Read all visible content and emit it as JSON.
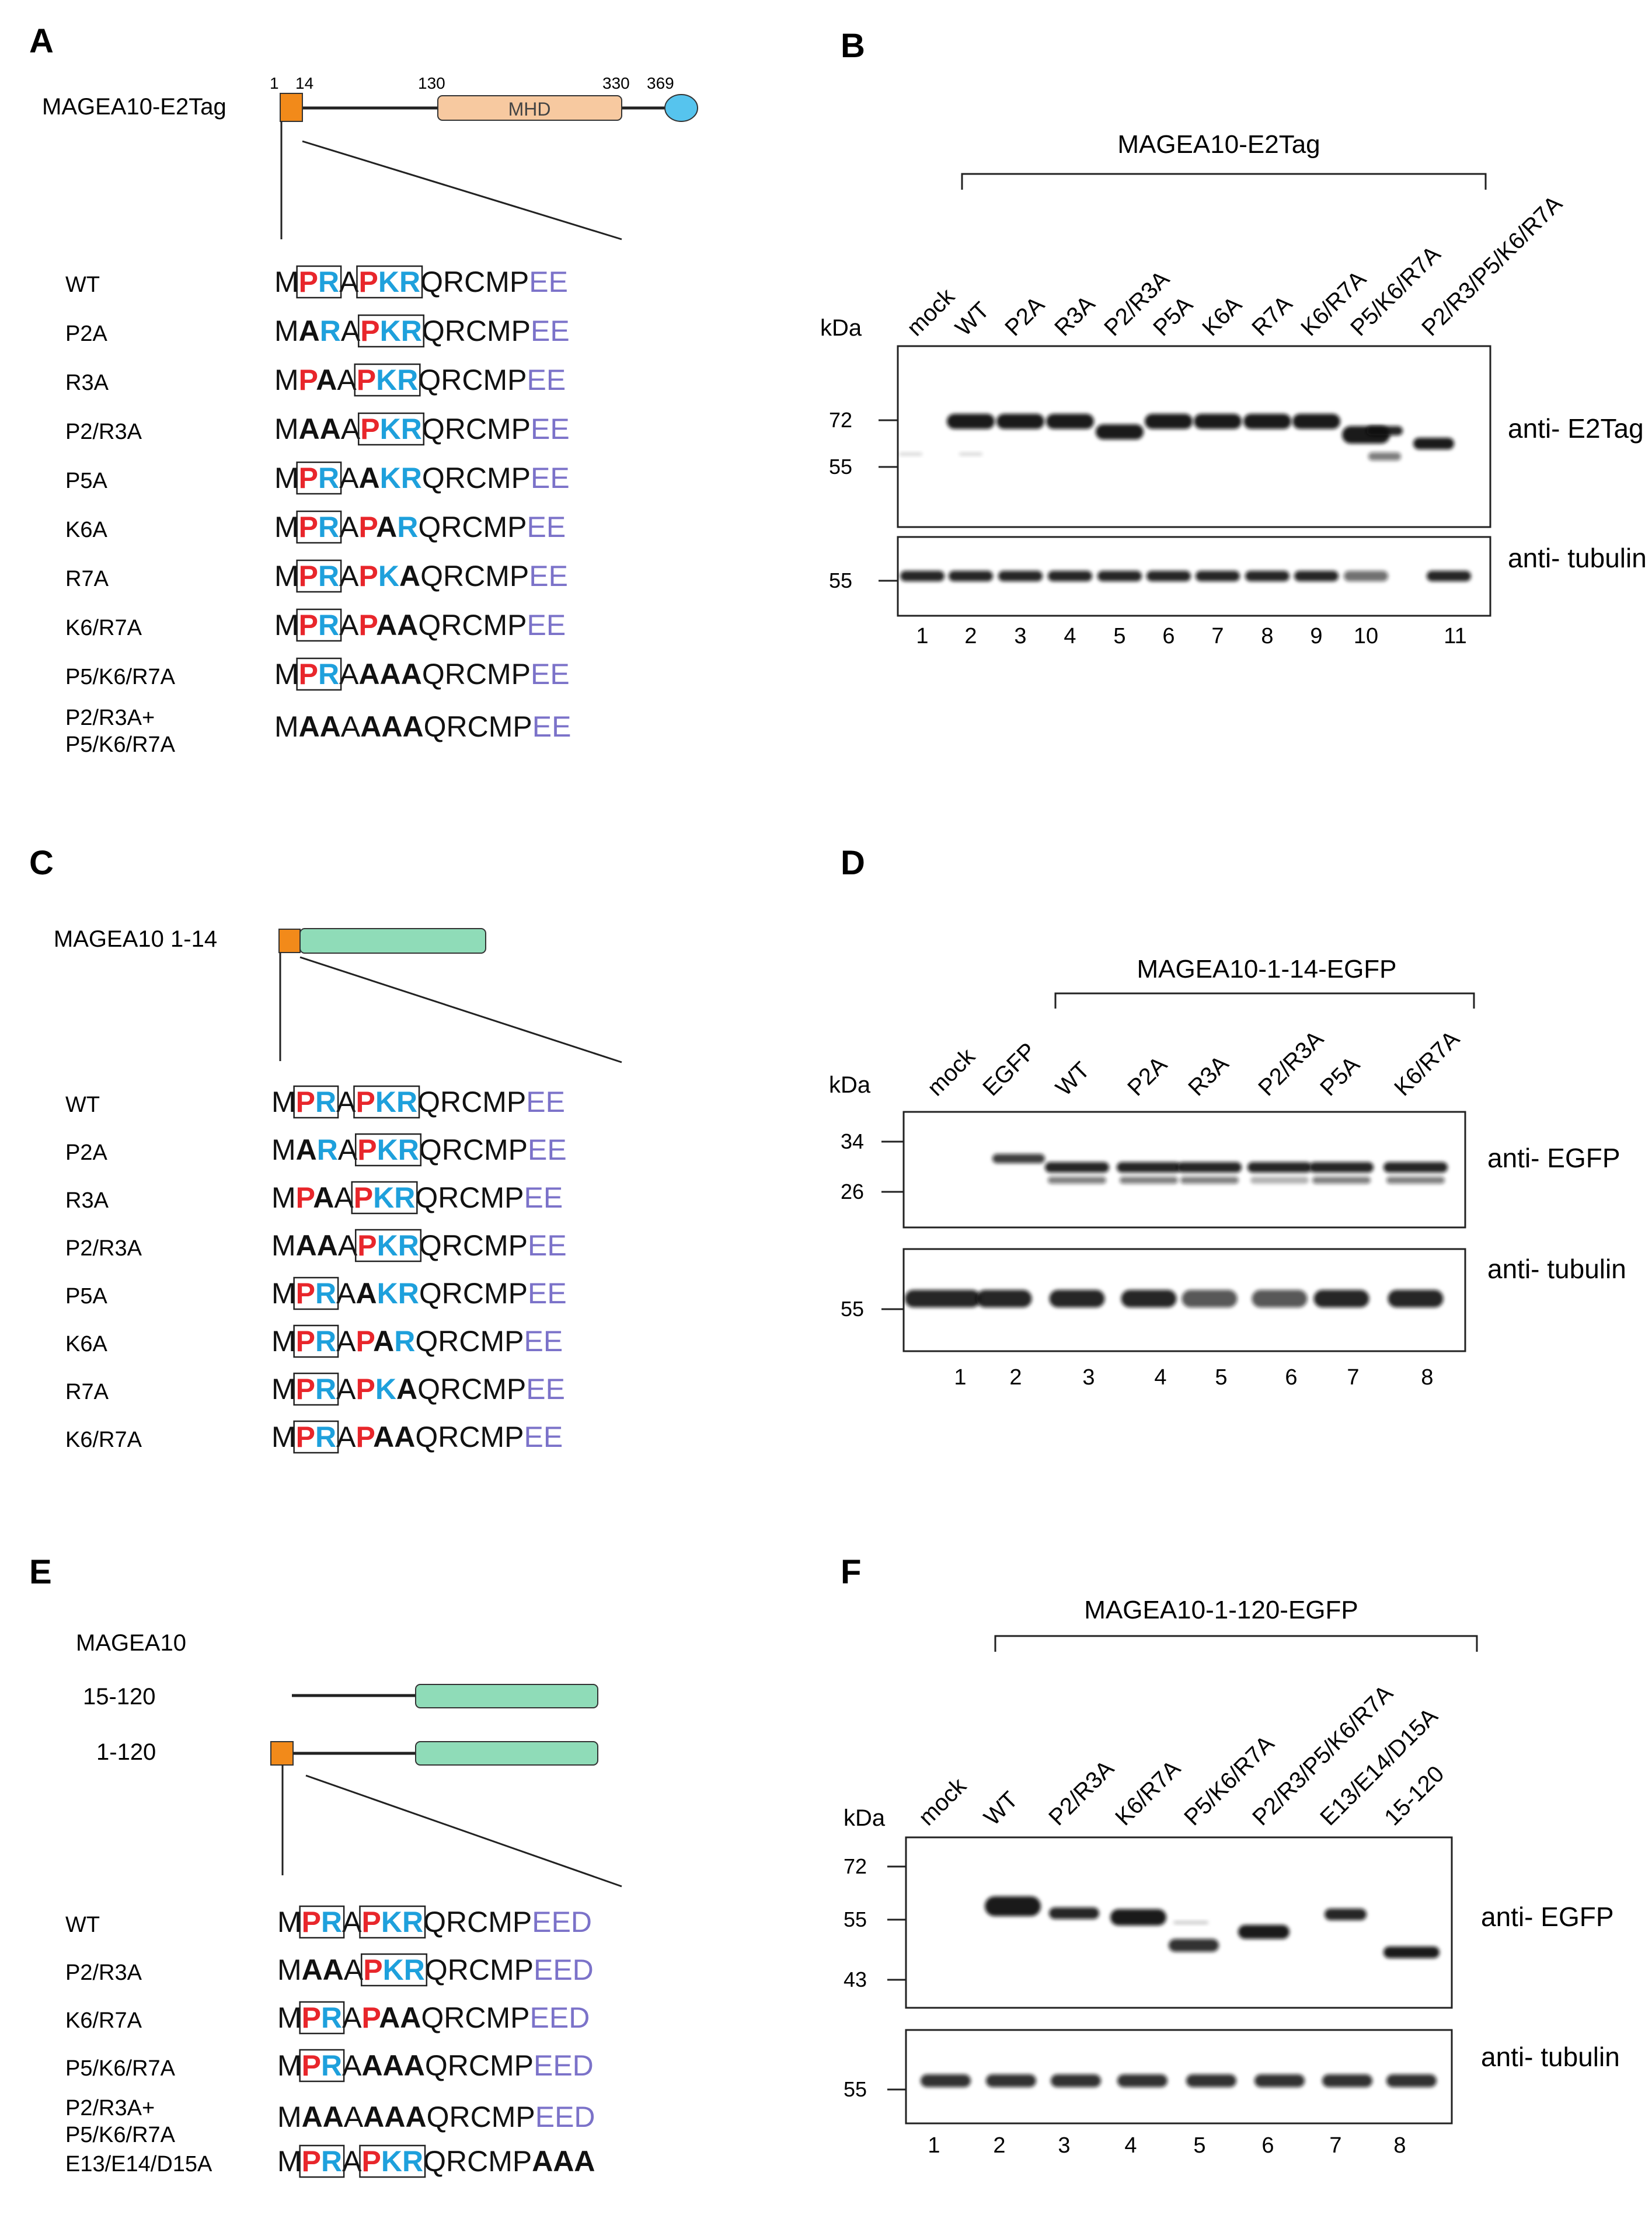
{
  "colors": {
    "red": "#e8262b",
    "blue": "#1ea0dc",
    "purple": "#7b72c9",
    "orange": "#f28a1a",
    "green": "#8fdcb8",
    "mhd": "#f7c9a0",
    "cyan": "#56c4ee"
  },
  "panelA": {
    "letter": "A",
    "construct": "MAGEA10-E2Tag",
    "positions": [
      "1",
      "14",
      "130",
      "330",
      "369"
    ],
    "domain": "MHD",
    "rows": [
      {
        "label": "WT",
        "seq": "MPRAPKRQRCMPEE"
      },
      {
        "label": "P2A",
        "seq": "MARAPKRQRCMPEE"
      },
      {
        "label": "R3A",
        "seq": "MPAAPKRQRCMPEE"
      },
      {
        "label": "P2/R3A",
        "seq": "MAAAPKRQRCMPEE"
      },
      {
        "label": "P5A",
        "seq": "MPRAAKRQRCMPEE"
      },
      {
        "label": "K6A",
        "seq": "MPRAPARQRCMPEE"
      },
      {
        "label": "R7A",
        "seq": "MPRAPKAQRCMPEE"
      },
      {
        "label": "K6/R7A",
        "seq": "MPRAPAAQRCMPEE"
      },
      {
        "label": "P5/K6/R7A",
        "seq": "MPRAAAAQRCMPEE"
      },
      {
        "label": "P2/R3A+ P5/K6/R7A",
        "seq": "MAAAAAAQRCMPEE"
      }
    ]
  },
  "panelB": {
    "letter": "B",
    "header": "MAGEA10-E2Tag",
    "kda": "kDa",
    "lanes": [
      "mock",
      "WT",
      "P2A",
      "R3A",
      "P2/R3A",
      "P5A",
      "K6A",
      "R7A",
      "K6/R7A",
      "P5/K6/R7A",
      "P2/R3/P5/K6/R7A"
    ],
    "numbers": [
      "1",
      "2",
      "3",
      "4",
      "5",
      "6",
      "7",
      "8",
      "9",
      "10",
      "11"
    ],
    "blot1": {
      "markers": [
        "72",
        "55"
      ],
      "antibody": "anti- E2Tag"
    },
    "blot2": {
      "markers": [
        "55"
      ],
      "antibody": "anti- tubulin"
    }
  },
  "panelC": {
    "letter": "C",
    "construct": "MAGEA10 1-14",
    "rows": [
      {
        "label": "WT",
        "seq": "MPRAPKRQRCMPEE"
      },
      {
        "label": "P2A",
        "seq": "MARAPKRQRCMPEE"
      },
      {
        "label": "R3A",
        "seq": "MPAAPKRQRCMPEE"
      },
      {
        "label": "P2/R3A",
        "seq": "MAAAPKRQRCMPEE"
      },
      {
        "label": "P5A",
        "seq": "MPRAAKRQRCMPEE"
      },
      {
        "label": "K6A",
        "seq": "MPRAPARQRCMPEE"
      },
      {
        "label": "R7A",
        "seq": "MPRAPKAQRCMPEE"
      },
      {
        "label": "K6/R7A",
        "seq": "MPRAPAAQRCMPEE"
      }
    ]
  },
  "panelD": {
    "letter": "D",
    "header": "MAGEA10-1-14-EGFP",
    "kda": "kDa",
    "lanes": [
      "mock",
      "EGFP",
      "WT",
      "P2A",
      "R3A",
      "P2/R3A",
      "P5A",
      "K6/R7A"
    ],
    "numbers": [
      "1",
      "2",
      "3",
      "4",
      "5",
      "6",
      "7",
      "8"
    ],
    "blot1": {
      "markers": [
        "34",
        "26"
      ],
      "antibody": "anti- EGFP"
    },
    "blot2": {
      "markers": [
        "55"
      ],
      "antibody": "anti- tubulin"
    }
  },
  "panelE": {
    "letter": "E",
    "title": "MAGEA10",
    "constructs": [
      "15-120",
      "1-120"
    ],
    "rows": [
      {
        "label": "WT",
        "seq": "MPRAPKRQRCMPEED"
      },
      {
        "label": "P2/R3A",
        "seq": "MAAAPKRQRCMPEED"
      },
      {
        "label": "K6/R7A",
        "seq": "MPRAPAAQRCMPEED"
      },
      {
        "label": "P5/K6/R7A",
        "seq": "MPRAAAAQRCMPEED"
      },
      {
        "label": "P2/R3A+ P5/K6/R7A",
        "seq": "MAAAAAAQRCMPEED"
      },
      {
        "label": "E13/E14/D15A",
        "seq": "MPRAPKRQRCMPAAA"
      }
    ]
  },
  "panelF": {
    "letter": "F",
    "header": "MAGEA10-1-120-EGFP",
    "kda": "kDa",
    "lanes": [
      "mock",
      "WT",
      "P2/R3A",
      "K6/R7A",
      "P5/K6/R7A",
      "P2/R3/P5/K6/R7A",
      "E13/E14/D15A",
      "15-120"
    ],
    "numbers": [
      "1",
      "2",
      "3",
      "4",
      "5",
      "6",
      "7",
      "8"
    ],
    "blot1": {
      "markers": [
        "72",
        "55",
        "43"
      ],
      "antibody": "anti- EGFP"
    },
    "blot2": {
      "markers": [
        "55"
      ],
      "antibody": "anti- tubulin"
    }
  }
}
